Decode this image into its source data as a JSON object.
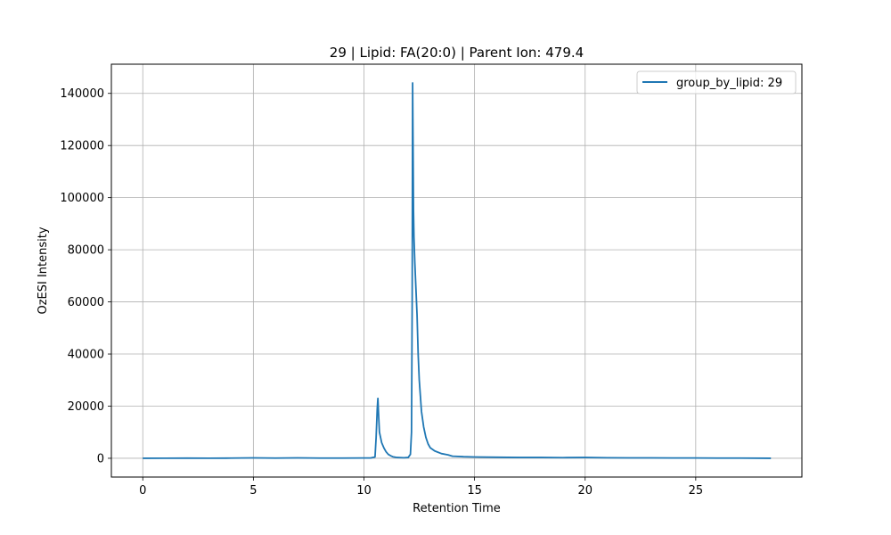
{
  "chart_data": {
    "type": "line",
    "title": "29 | Lipid: FA(20:0) | Parent Ion: 479.4",
    "xlabel": "Retention Time",
    "ylabel": "OzESI Intensity",
    "xlim": [
      -1.42,
      29.8
    ],
    "ylim": [
      -7200,
      151200
    ],
    "xticks": [
      0,
      5,
      10,
      15,
      20,
      25
    ],
    "xtick_labels": [
      "0",
      "5",
      "10",
      "15",
      "20",
      "25"
    ],
    "yticks": [
      0,
      20000,
      40000,
      60000,
      80000,
      100000,
      120000,
      140000
    ],
    "ytick_labels": [
      "0",
      "20000",
      "40000",
      "60000",
      "80000",
      "100000",
      "120000",
      "140000"
    ],
    "grid": true,
    "legend_position": "top-right",
    "line_color": "#1f77b4",
    "series": [
      {
        "name": "group_by_lipid: 29",
        "x": [
          0,
          1,
          2,
          3,
          4,
          5,
          6,
          7,
          7.5,
          8,
          9,
          10,
          10.3,
          10.5,
          10.55,
          10.6,
          10.63,
          10.66,
          10.7,
          10.75,
          10.8,
          10.9,
          11.0,
          11.1,
          11.2,
          11.3,
          11.5,
          11.8,
          12.0,
          12.1,
          12.15,
          12.18,
          12.2,
          12.22,
          12.24,
          12.26,
          12.3,
          12.35,
          12.4,
          12.45,
          12.5,
          12.55,
          12.6,
          12.7,
          12.8,
          12.9,
          13.0,
          13.2,
          13.5,
          13.8,
          14.0,
          14.5,
          15,
          16,
          17,
          18,
          19,
          20,
          21,
          22,
          23,
          24,
          25,
          26,
          27,
          28.4
        ],
        "y": [
          0,
          30,
          50,
          40,
          60,
          150,
          80,
          150,
          100,
          80,
          60,
          100,
          120,
          500,
          8000,
          19000,
          23000,
          17000,
          10000,
          8000,
          6000,
          4000,
          2500,
          1500,
          1000,
          600,
          300,
          200,
          300,
          1500,
          10000,
          60000,
          144000,
          120000,
          95000,
          85000,
          75000,
          65000,
          55000,
          40000,
          30000,
          24000,
          18000,
          12000,
          8000,
          5500,
          4000,
          2800,
          1800,
          1300,
          800,
          600,
          500,
          400,
          300,
          300,
          250,
          300,
          200,
          150,
          150,
          100,
          100,
          80,
          60,
          0
        ]
      }
    ]
  }
}
